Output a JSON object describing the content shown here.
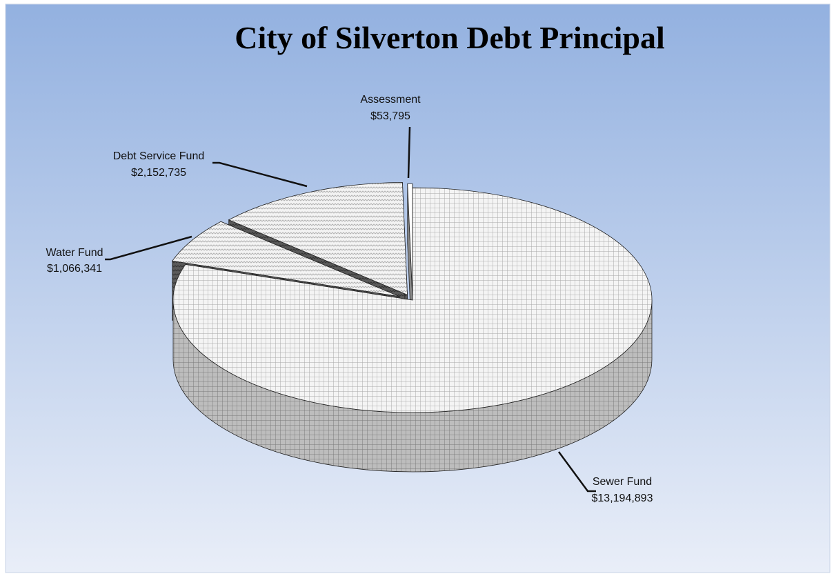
{
  "chart_data": {
    "type": "pie",
    "title": "City of Silverton Debt Principal",
    "categories": [
      "Sewer Fund",
      "Water Fund",
      "Debt Service Fund",
      "Assessment"
    ],
    "values": [
      13194893,
      1066341,
      2152735,
      53795
    ],
    "value_labels": [
      "$13,194,893",
      "$1,066,341",
      "$2,152,735",
      "$53,795"
    ]
  }
}
